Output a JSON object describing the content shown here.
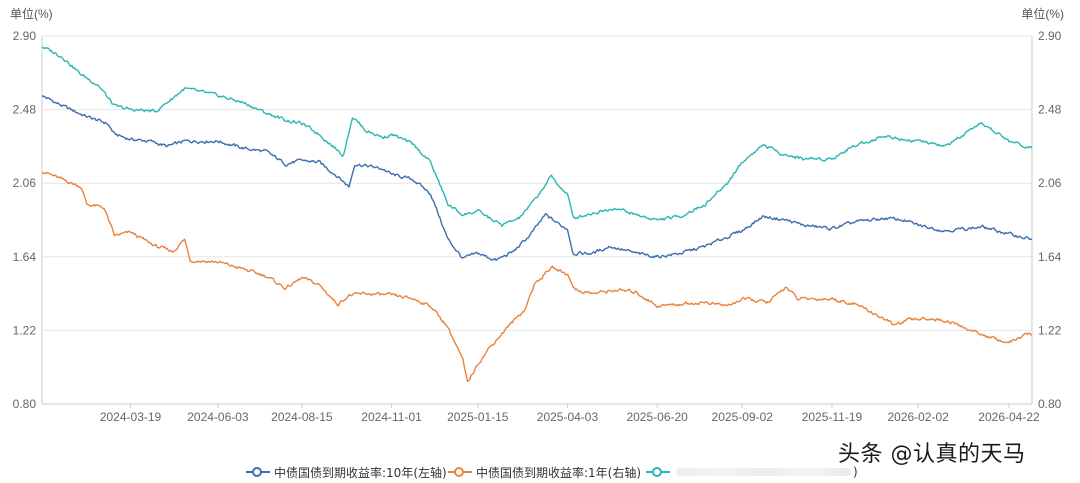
{
  "chart_data": {
    "type": "line",
    "left_unit": "单位(%)",
    "right_unit": "单位(%)",
    "y_ticks": [
      0.8,
      1.22,
      1.64,
      2.06,
      2.48,
      2.9
    ],
    "y_tick_labels": [
      "0.80",
      "1.22",
      "1.64",
      "2.06",
      "2.48",
      "2.90"
    ],
    "ylim": [
      0.8,
      2.9
    ],
    "x_ticks": [
      "2024-03-19",
      "2024-06-03",
      "2024-08-15",
      "2024-11-01",
      "2025-01-15",
      "2025-04-03",
      "2025-06-20",
      "2025-09-02",
      "2025-11-19",
      "2026-02-02",
      "2026-04-22"
    ],
    "x_start": "2024-01-02",
    "x_end": "2026-05-12",
    "grid": "horizontal",
    "legend_position": "bottom-center",
    "series": [
      {
        "name": "中债国债到期收益率:10年(左轴)",
        "color": "#3d6fad",
        "axis": "left",
        "points": [
          [
            "2024-01-02",
            2.56
          ],
          [
            "2024-01-20",
            2.5
          ],
          [
            "2024-02-10",
            2.44
          ],
          [
            "2024-02-28",
            2.4
          ],
          [
            "2024-03-05",
            2.34
          ],
          [
            "2024-03-19",
            2.31
          ],
          [
            "2024-04-05",
            2.3
          ],
          [
            "2024-04-20",
            2.27
          ],
          [
            "2024-05-05",
            2.3
          ],
          [
            "2024-06-03",
            2.3
          ],
          [
            "2024-06-25",
            2.26
          ],
          [
            "2024-07-15",
            2.24
          ],
          [
            "2024-08-01",
            2.17
          ],
          [
            "2024-08-15",
            2.19
          ],
          [
            "2024-08-30",
            2.18
          ],
          [
            "2024-09-15",
            2.1
          ],
          [
            "2024-09-25",
            2.04
          ],
          [
            "2024-09-30",
            2.17
          ],
          [
            "2024-10-10",
            2.16
          ],
          [
            "2024-10-25",
            2.14
          ],
          [
            "2024-11-01",
            2.11
          ],
          [
            "2024-11-20",
            2.08
          ],
          [
            "2024-12-05",
            2.0
          ],
          [
            "2024-12-20",
            1.74
          ],
          [
            "2025-01-02",
            1.63
          ],
          [
            "2025-01-15",
            1.66
          ],
          [
            "2025-01-31",
            1.62
          ],
          [
            "2025-02-15",
            1.67
          ],
          [
            "2025-03-01",
            1.76
          ],
          [
            "2025-03-15",
            1.88
          ],
          [
            "2025-03-28",
            1.82
          ],
          [
            "2025-04-03",
            1.8
          ],
          [
            "2025-04-08",
            1.66
          ],
          [
            "2025-04-25",
            1.66
          ],
          [
            "2025-05-10",
            1.7
          ],
          [
            "2025-06-01",
            1.66
          ],
          [
            "2025-06-20",
            1.64
          ],
          [
            "2025-07-10",
            1.66
          ],
          [
            "2025-08-01",
            1.7
          ],
          [
            "2025-08-15",
            1.74
          ],
          [
            "2025-09-02",
            1.79
          ],
          [
            "2025-09-20",
            1.87
          ],
          [
            "2025-10-10",
            1.85
          ],
          [
            "2025-10-25",
            1.82
          ],
          [
            "2025-11-19",
            1.8
          ],
          [
            "2025-12-10",
            1.84
          ],
          [
            "2026-01-05",
            1.86
          ],
          [
            "2026-01-20",
            1.85
          ],
          [
            "2026-02-02",
            1.82
          ],
          [
            "2026-02-25",
            1.79
          ],
          [
            "2026-03-15",
            1.8
          ],
          [
            "2026-03-30",
            1.81
          ],
          [
            "2026-04-22",
            1.77
          ],
          [
            "2026-05-12",
            1.74
          ]
        ]
      },
      {
        "name": "中债国债到期收益率:1年(右轴)",
        "color": "#e8843c",
        "axis": "right",
        "points": [
          [
            "2024-01-02",
            2.13
          ],
          [
            "2024-01-20",
            2.08
          ],
          [
            "2024-02-05",
            2.04
          ],
          [
            "2024-02-10",
            1.94
          ],
          [
            "2024-02-25",
            1.92
          ],
          [
            "2024-03-05",
            1.76
          ],
          [
            "2024-03-19",
            1.78
          ],
          [
            "2024-04-10",
            1.7
          ],
          [
            "2024-04-25",
            1.67
          ],
          [
            "2024-05-05",
            1.74
          ],
          [
            "2024-05-10",
            1.62
          ],
          [
            "2024-06-03",
            1.61
          ],
          [
            "2024-06-25",
            1.57
          ],
          [
            "2024-07-15",
            1.53
          ],
          [
            "2024-08-01",
            1.46
          ],
          [
            "2024-08-15",
            1.52
          ],
          [
            "2024-08-30",
            1.48
          ],
          [
            "2024-09-15",
            1.37
          ],
          [
            "2024-09-25",
            1.42
          ],
          [
            "2024-10-10",
            1.43
          ],
          [
            "2024-11-01",
            1.42
          ],
          [
            "2024-11-20",
            1.4
          ],
          [
            "2024-12-05",
            1.36
          ],
          [
            "2024-12-20",
            1.24
          ],
          [
            "2025-01-02",
            1.05
          ],
          [
            "2025-01-06",
            0.92
          ],
          [
            "2025-01-15",
            1.03
          ],
          [
            "2025-01-25",
            1.12
          ],
          [
            "2025-02-10",
            1.24
          ],
          [
            "2025-02-25",
            1.34
          ],
          [
            "2025-03-05",
            1.48
          ],
          [
            "2025-03-20",
            1.58
          ],
          [
            "2025-04-03",
            1.54
          ],
          [
            "2025-04-10",
            1.45
          ],
          [
            "2025-04-25",
            1.43
          ],
          [
            "2025-05-15",
            1.45
          ],
          [
            "2025-06-01",
            1.44
          ],
          [
            "2025-06-20",
            1.36
          ],
          [
            "2025-07-10",
            1.37
          ],
          [
            "2025-08-01",
            1.38
          ],
          [
            "2025-08-20",
            1.36
          ],
          [
            "2025-09-02",
            1.4
          ],
          [
            "2025-09-25",
            1.38
          ],
          [
            "2025-10-10",
            1.47
          ],
          [
            "2025-10-20",
            1.4
          ],
          [
            "2025-11-19",
            1.4
          ],
          [
            "2025-12-10",
            1.37
          ],
          [
            "2026-01-05",
            1.28
          ],
          [
            "2026-01-12",
            1.25
          ],
          [
            "2026-01-25",
            1.28
          ],
          [
            "2026-02-10",
            1.29
          ],
          [
            "2026-03-01",
            1.27
          ],
          [
            "2026-03-20",
            1.22
          ],
          [
            "2026-04-10",
            1.17
          ],
          [
            "2026-04-22",
            1.15
          ],
          [
            "2026-05-05",
            1.19
          ],
          [
            "2026-05-12",
            1.2
          ]
        ]
      },
      {
        "name": "",
        "color": "#2bb7b3",
        "axis": "left",
        "points": [
          [
            "2024-01-02",
            2.84
          ],
          [
            "2024-01-20",
            2.78
          ],
          [
            "2024-02-05",
            2.68
          ],
          [
            "2024-02-20",
            2.62
          ],
          [
            "2024-03-05",
            2.5
          ],
          [
            "2024-03-19",
            2.48
          ],
          [
            "2024-04-10",
            2.47
          ],
          [
            "2024-05-05",
            2.6
          ],
          [
            "2024-06-03",
            2.56
          ],
          [
            "2024-06-25",
            2.52
          ],
          [
            "2024-07-15",
            2.46
          ],
          [
            "2024-08-01",
            2.42
          ],
          [
            "2024-08-15",
            2.4
          ],
          [
            "2024-08-30",
            2.34
          ],
          [
            "2024-09-20",
            2.22
          ],
          [
            "2024-09-28",
            2.44
          ],
          [
            "2024-10-10",
            2.36
          ],
          [
            "2024-10-25",
            2.32
          ],
          [
            "2024-11-01",
            2.34
          ],
          [
            "2024-11-20",
            2.28
          ],
          [
            "2024-12-05",
            2.18
          ],
          [
            "2024-12-20",
            1.94
          ],
          [
            "2025-01-02",
            1.88
          ],
          [
            "2025-01-15",
            1.9
          ],
          [
            "2025-02-05",
            1.82
          ],
          [
            "2025-02-20",
            1.86
          ],
          [
            "2025-03-05",
            1.96
          ],
          [
            "2025-03-20",
            2.1
          ],
          [
            "2025-03-30",
            2.02
          ],
          [
            "2025-04-03",
            2.0
          ],
          [
            "2025-04-08",
            1.86
          ],
          [
            "2025-04-25",
            1.89
          ],
          [
            "2025-05-15",
            1.92
          ],
          [
            "2025-06-01",
            1.88
          ],
          [
            "2025-06-20",
            1.85
          ],
          [
            "2025-07-10",
            1.87
          ],
          [
            "2025-08-01",
            1.94
          ],
          [
            "2025-08-20",
            2.06
          ],
          [
            "2025-09-02",
            2.18
          ],
          [
            "2025-09-20",
            2.28
          ],
          [
            "2025-10-10",
            2.22
          ],
          [
            "2025-10-25",
            2.2
          ],
          [
            "2025-11-19",
            2.2
          ],
          [
            "2025-12-10",
            2.28
          ],
          [
            "2026-01-05",
            2.33
          ],
          [
            "2026-01-20",
            2.31
          ],
          [
            "2026-02-02",
            2.3
          ],
          [
            "2026-02-25",
            2.27
          ],
          [
            "2026-03-15",
            2.34
          ],
          [
            "2026-03-30",
            2.4
          ],
          [
            "2026-04-22",
            2.3
          ],
          [
            "2026-05-12",
            2.26
          ]
        ]
      }
    ]
  },
  "legend": {
    "items": [
      {
        "label": "中债国债到期收益率:10年(左轴)",
        "color": "#3d6fad"
      },
      {
        "label": "中债国债到期收益率:1年(右轴)",
        "color": "#e8843c"
      },
      {
        "label": ")",
        "color": "#2bb7b3"
      }
    ]
  },
  "watermark": "头条 @认真的天马"
}
